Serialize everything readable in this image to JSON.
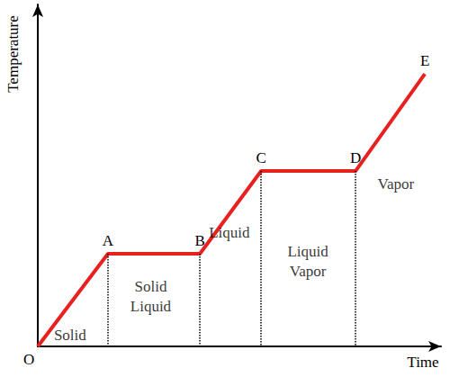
{
  "chart_data": {
    "type": "line",
    "x_label": "Time",
    "y_label": "Temperature",
    "x": [
      0,
      17.4,
      40.2,
      55.4,
      78.8,
      96
    ],
    "values": [
      0,
      27.1,
      27.1,
      51.3,
      51.3,
      79.7
    ],
    "point_labels": [
      "O",
      "A",
      "B",
      "C",
      "D",
      "E"
    ],
    "color": "#e8201e",
    "xlim": [
      0,
      100
    ],
    "ylim": [
      0,
      100
    ],
    "grid": false,
    "tick_labels": false,
    "annotations": [
      {
        "text": "Solid",
        "x": 8,
        "y": 3.4
      },
      {
        "text": "Solid\nLiquid",
        "x": 28,
        "y": 14.5
      },
      {
        "text": "Liquid",
        "x": 47.5,
        "y": 33.4
      },
      {
        "text": "Liquid\nVapor",
        "x": 67,
        "y": 25
      },
      {
        "text": "Vapor",
        "x": 88.8,
        "y": 47.4
      }
    ]
  }
}
